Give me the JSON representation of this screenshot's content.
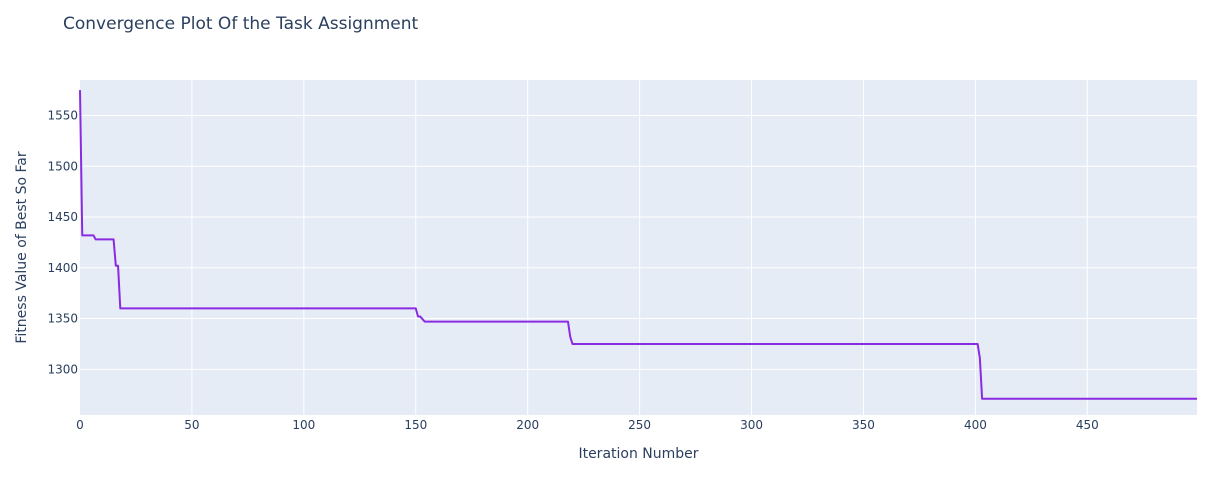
{
  "chart_data": {
    "type": "line",
    "title": "Convergence Plot Of the Task Assignment",
    "xlabel": "Iteration Number",
    "ylabel": "Fitness Value of Best So Far",
    "xlim": [
      0,
      499
    ],
    "ylim": [
      1255,
      1585
    ],
    "x_ticks": [
      0,
      50,
      100,
      150,
      200,
      250,
      300,
      350,
      400,
      450
    ],
    "y_ticks": [
      1300,
      1350,
      1400,
      1450,
      1500,
      1550
    ],
    "grid": true,
    "legend": "none",
    "colors": {
      "plot_background": "#e5ecf6",
      "grid": "#ffffff",
      "line": "#8a2be2",
      "text": "#2a3f5f"
    },
    "series": [
      {
        "points": [
          [
            0,
            1575
          ],
          [
            1,
            1432
          ],
          [
            6,
            1432
          ],
          [
            7,
            1428
          ],
          [
            15,
            1428
          ],
          [
            16,
            1402
          ],
          [
            17,
            1402
          ],
          [
            18,
            1360
          ],
          [
            150,
            1360
          ],
          [
            151,
            1352
          ],
          [
            152,
            1352
          ],
          [
            154,
            1347
          ],
          [
            218,
            1347
          ],
          [
            219,
            1332
          ],
          [
            220,
            1325
          ],
          [
            401,
            1325
          ],
          [
            402,
            1311
          ],
          [
            403,
            1271
          ],
          [
            499,
            1271
          ]
        ]
      }
    ]
  }
}
